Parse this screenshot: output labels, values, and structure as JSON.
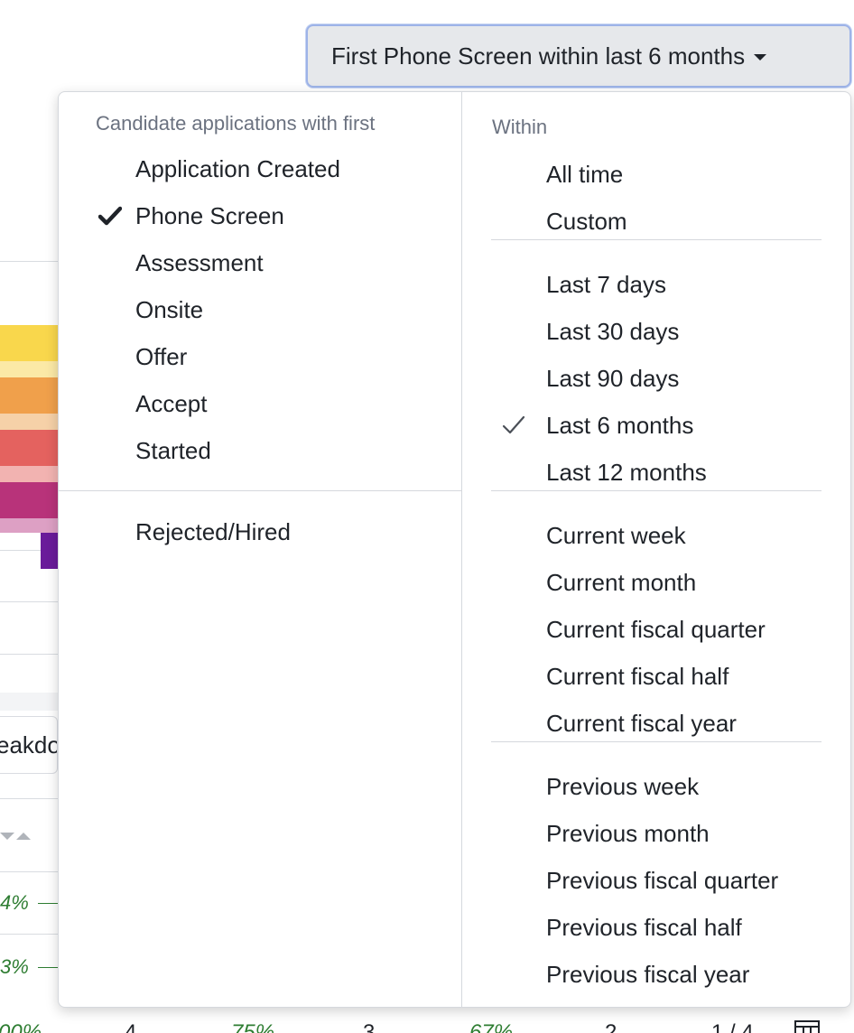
{
  "trigger": {
    "label": "First Phone Screen within last 6 months"
  },
  "left_panel": {
    "heading": "Candidate applications with first",
    "stages": [
      {
        "label": "Application Created",
        "selected": false
      },
      {
        "label": "Phone Screen",
        "selected": true
      },
      {
        "label": "Assessment",
        "selected": false
      },
      {
        "label": "Onsite",
        "selected": false
      },
      {
        "label": "Offer",
        "selected": false
      },
      {
        "label": "Accept",
        "selected": false
      },
      {
        "label": "Started",
        "selected": false
      }
    ],
    "extra": {
      "label": "Rejected/Hired"
    }
  },
  "right_panel": {
    "heading": "Within",
    "groups": [
      [
        "All time",
        "Custom"
      ],
      [
        "Last 7 days",
        "Last 30 days",
        "Last 90 days",
        "Last 6 months",
        "Last 12 months"
      ],
      [
        "Current week",
        "Current month",
        "Current fiscal quarter",
        "Current fiscal half",
        "Current fiscal year"
      ],
      [
        "Previous week",
        "Previous month",
        "Previous fiscal quarter",
        "Previous fiscal half",
        "Previous fiscal year"
      ]
    ],
    "selected": "Last 6 months"
  },
  "background": {
    "breakdown_fragment": "eakdo",
    "pct_1": "4%",
    "pct_2": "3%",
    "bottom_row": [
      "00%",
      "4",
      "75%",
      "3",
      "67%",
      "2",
      "1 / 4"
    ]
  },
  "colors": {
    "band_yellow": "#f9d74c",
    "band_yellow_light": "#fbe9a6",
    "band_orange": "#f0a04b",
    "band_orange_light": "#f6d1a8",
    "band_red": "#e4625f",
    "band_red_light": "#f2b3b1",
    "band_magenta": "#b8337a",
    "band_magenta_light": "#dda0c4",
    "band_purple": "#6a1b9a"
  }
}
